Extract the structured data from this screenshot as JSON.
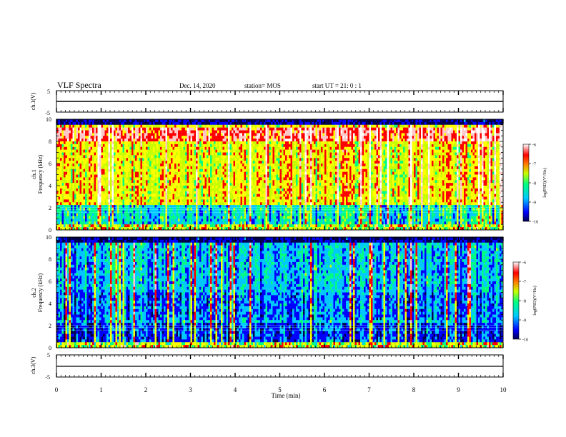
{
  "header": {
    "title": "VLF Spectra",
    "date": "Dec. 14, 2020",
    "station": "station= MOS",
    "start": "start  UT =   21: 0  : 1"
  },
  "chart_data": [
    {
      "type": "line",
      "name": "ch.1 waveform",
      "ylabel": "ch.1(V)",
      "ylim": [
        -5,
        5
      ],
      "yticks": [
        "5",
        "-5"
      ],
      "x": [
        0,
        10
      ],
      "values": [
        0,
        0
      ],
      "xlim": [
        0,
        10
      ]
    },
    {
      "type": "heatmap",
      "name": "ch.1 spectrogram",
      "ylabel": "ch.1\nFrequency (kHz)",
      "ylabel_lines": [
        "ch.1",
        "Frequency (kHz)"
      ],
      "ylim": [
        0,
        10
      ],
      "yticks": [
        0,
        2,
        4,
        6,
        8,
        10
      ],
      "xlim": [
        0,
        10
      ],
      "colorbar": {
        "label": "log(PSD)(V²/Hz)",
        "range": [
          -10,
          -6
        ],
        "ticks": [
          "-6",
          "-7",
          "-8",
          "-9",
          "-10"
        ]
      },
      "intensity": "high"
    },
    {
      "type": "heatmap",
      "name": "ch.2 spectrogram",
      "ylabel": "ch.2\nFrequency (kHz)",
      "ylabel_lines": [
        "ch.2",
        "Frequency (kHz)"
      ],
      "ylim": [
        0,
        10
      ],
      "yticks": [
        0,
        2,
        4,
        6,
        8,
        10
      ],
      "xlim": [
        0,
        10
      ],
      "colorbar": {
        "label": "log(PSD)(V²/Hz)",
        "range": [
          -10,
          -6
        ],
        "ticks": [
          "-6",
          "-7",
          "-8",
          "-9",
          "-10"
        ]
      },
      "intensity": "low"
    },
    {
      "type": "line",
      "name": "ch.3 waveform",
      "ylabel": "ch.3(V)",
      "ylim": [
        -5,
        5
      ],
      "yticks": [
        "5",
        "-5"
      ],
      "x": [
        0,
        10
      ],
      "values": [
        -2,
        -2
      ],
      "xlim": [
        0,
        10
      ]
    }
  ],
  "xaxis": {
    "label": "Time  (min)",
    "ticks": [
      "0",
      "1",
      "2",
      "3",
      "4",
      "5",
      "6",
      "7",
      "8",
      "9",
      "10"
    ]
  },
  "colors": {
    "axis": "#000000",
    "colormap": [
      "#000050",
      "#0000ff",
      "#00c8ff",
      "#00ff80",
      "#c8ff00",
      "#ffff00",
      "#ff0000",
      "#ffc8c8",
      "#ffffff"
    ]
  }
}
